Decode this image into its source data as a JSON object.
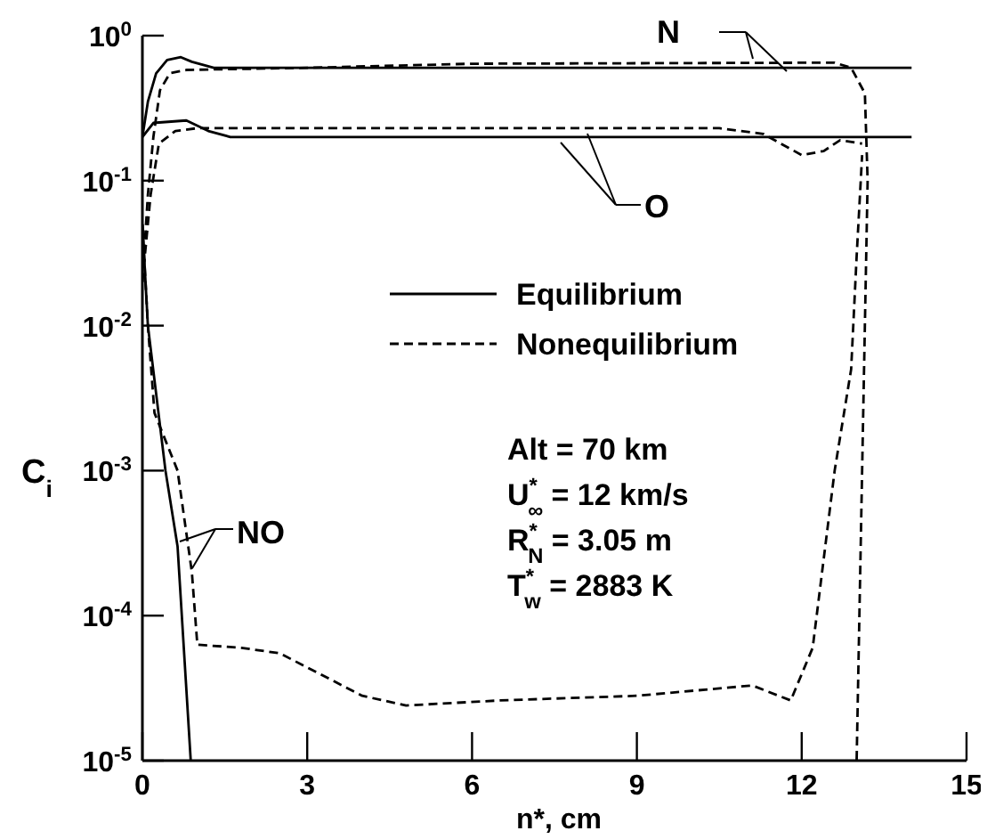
{
  "chart_data": {
    "type": "line",
    "xlabel": "n*, cm",
    "ylabel": "C$_{i}$",
    "log": "y",
    "legend": "center",
    "marker": "none",
    "xlim": [
      0,
      15
    ],
    "xticks": [
      0,
      3,
      6,
      9,
      12,
      15
    ],
    "ylim": [
      1e-05,
      1
    ],
    "yticks": [
      {
        "value": 1,
        "label": "10$^{0}$"
      },
      {
        "value": 0.1,
        "label": "10$^{-1}$"
      },
      {
        "value": 0.01,
        "label": "10$^{-2}$"
      },
      {
        "value": 0.001,
        "label": "10$^{-3}$"
      },
      {
        "value": 0.0001,
        "label": "10$^{-4}$"
      },
      {
        "value": 1e-05,
        "label": "10$^{-5}$"
      }
    ],
    "annotations": [
      "Equilibrium",
      "Nonequilibrium",
      "Alt = 70 km",
      "U$^{*}$$_{∞}$ = 12 km/s",
      "R$^{*}$$_{N}$ = 3.05 m",
      "T$^{*}$$_{w}$ = 2883 K"
    ],
    "series": [
      {
        "name": "N",
        "color": "#000000",
        "line_style": "solid",
        "x": [
          0,
          0.1,
          0.25,
          0.45,
          0.7,
          0.9,
          1.3,
          2,
          14
        ],
        "values": [
          0.2,
          0.35,
          0.55,
          0.68,
          0.71,
          0.66,
          0.6,
          0.6,
          0.6
        ]
      },
      {
        "color": "#000000",
        "line_style": "dashed",
        "x": [
          0,
          0.1,
          0.2,
          0.32,
          0.5,
          0.8,
          3,
          6,
          12,
          12.6,
          12.9,
          13.15,
          13.2,
          13.15,
          13.1,
          13.0
        ],
        "values": [
          0.02,
          0.08,
          0.2,
          0.42,
          0.55,
          0.58,
          0.6,
          0.64,
          0.65,
          0.65,
          0.6,
          0.4,
          0.1,
          0.01,
          0.001,
          1e-05
        ]
      },
      {
        "name": "O",
        "color": "#000000",
        "line_style": "solid",
        "x": [
          0,
          0.2,
          0.8,
          1.2,
          1.6,
          14
        ],
        "values": [
          0.2,
          0.25,
          0.26,
          0.22,
          0.2,
          0.2
        ]
      },
      {
        "color": "#000000",
        "line_style": "dashed",
        "x": [
          0,
          0.15,
          0.3,
          0.6,
          1,
          10.5,
          11.3,
          12,
          12.4,
          12.7,
          13.1
        ],
        "values": [
          0.02,
          0.08,
          0.18,
          0.22,
          0.23,
          0.23,
          0.21,
          0.15,
          0.16,
          0.19,
          0.18
        ]
      },
      {
        "name": "NO",
        "color": "#000000",
        "line_style": "solid",
        "x": [
          0,
          0.1,
          0.42,
          0.64,
          0.88
        ],
        "values": [
          0.05,
          0.01,
          0.001,
          0.0003,
          1e-05
        ]
      },
      {
        "color": "#000000",
        "line_style": "dashed",
        "x": [
          0,
          0.1,
          0.22,
          0.64,
          0.9,
          1.0,
          1.8,
          2.5,
          4,
          4.8,
          6.5,
          9,
          11.1,
          11.8,
          12.2,
          12.6,
          12.9,
          13.0,
          13.1
        ],
        "values": [
          0.05,
          0.01,
          0.0025,
          0.001,
          0.0002,
          6.3e-05,
          6e-05,
          5.5e-05,
          2.8e-05,
          2.4e-05,
          2.6e-05,
          2.8e-05,
          3.3e-05,
          2.6e-05,
          6e-05,
          0.001,
          0.005,
          0.03,
          0.15
        ]
      }
    ]
  }
}
